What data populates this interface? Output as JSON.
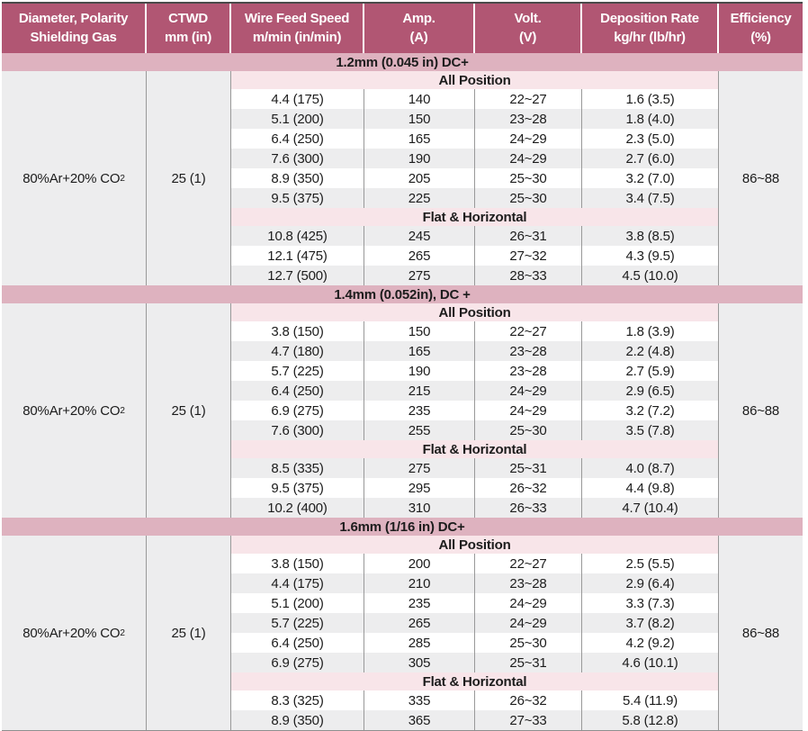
{
  "colors": {
    "header_bg": "#b15673",
    "header_text": "#ffffff",
    "section_band_bg": "#deb2bf",
    "subheader_bg": "#f8e5e9",
    "stripe_bg": "#ededee",
    "body_text": "#1c1c1c",
    "grid_line": "#999999"
  },
  "header": {
    "columns": [
      {
        "line1": "Diameter, Polarity",
        "line2": "Shielding Gas"
      },
      {
        "line1": "CTWD",
        "line2": "mm (in)"
      },
      {
        "line1": "Wire Feed Speed",
        "line2": "m/min (in/min)"
      },
      {
        "line1": "Amp.",
        "line2": "(A)"
      },
      {
        "line1": "Volt.",
        "line2": "(V)"
      },
      {
        "line1": "Deposition Rate",
        "line2": "kg/hr (lb/hr)"
      },
      {
        "line1": "Efficiency",
        "line2": "(%)"
      }
    ]
  },
  "sections": [
    {
      "title": "1.2mm (0.045 in) DC+",
      "shielding_gas": {
        "main": "80%Ar+20% CO",
        "sub": "2"
      },
      "ctwd": "25 (1)",
      "efficiency": "86~88",
      "blocks": [
        {
          "label": "All Position",
          "first_row_shaded": false,
          "rows": [
            [
              "4.4 (175)",
              "140",
              "22~27",
              "1.6 (3.5)"
            ],
            [
              "5.1 (200)",
              "150",
              "23~28",
              "1.8 (4.0)"
            ],
            [
              "6.4 (250)",
              "165",
              "24~29",
              "2.3 (5.0)"
            ],
            [
              "7.6 (300)",
              "190",
              "24~29",
              "2.7 (6.0)"
            ],
            [
              "8.9 (350)",
              "205",
              "25~30",
              "3.2 (7.0)"
            ],
            [
              "9.5 (375)",
              "225",
              "25~30",
              "3.4 (7.5)"
            ]
          ]
        },
        {
          "label": "Flat & Horizontal",
          "first_row_shaded": true,
          "rows": [
            [
              "10.8 (425)",
              "245",
              "26~31",
              "3.8 (8.5)"
            ],
            [
              "12.1 (475)",
              "265",
              "27~32",
              "4.3 (9.5)"
            ],
            [
              "12.7 (500)",
              "275",
              "28~33",
              "4.5 (10.0)"
            ]
          ]
        }
      ]
    },
    {
      "title": "1.4mm (0.052in), DC +",
      "shielding_gas": {
        "main": "80%Ar+20% CO",
        "sub": "2"
      },
      "ctwd": "25 (1)",
      "efficiency": "86~88",
      "blocks": [
        {
          "label": "All Position",
          "first_row_shaded": false,
          "rows": [
            [
              "3.8 (150)",
              "150",
              "22~27",
              "1.8 (3.9)"
            ],
            [
              "4.7 (180)",
              "165",
              "23~28",
              "2.2 (4.8)"
            ],
            [
              "5.7 (225)",
              "190",
              "23~28",
              "2.7 (5.9)"
            ],
            [
              "6.4 (250)",
              "215",
              "24~29",
              "2.9 (6.5)"
            ],
            [
              "6.9 (275)",
              "235",
              "24~29",
              "3.2 (7.2)"
            ],
            [
              "7.6 (300)",
              "255",
              "25~30",
              "3.5 (7.8)"
            ]
          ]
        },
        {
          "label": "Flat & Horizontal",
          "first_row_shaded": true,
          "rows": [
            [
              "8.5 (335)",
              "275",
              "25~31",
              "4.0 (8.7)"
            ],
            [
              "9.5 (375)",
              "295",
              "26~32",
              "4.4 (9.8)"
            ],
            [
              "10.2 (400)",
              "310",
              "26~33",
              "4.7 (10.4)"
            ]
          ]
        }
      ]
    },
    {
      "title": "1.6mm (1/16 in) DC+",
      "shielding_gas": {
        "main": "80%Ar+20% CO",
        "sub": "2"
      },
      "ctwd": "25 (1)",
      "efficiency": "86~88",
      "blocks": [
        {
          "label": "All Position",
          "first_row_shaded": false,
          "rows": [
            [
              "3.8 (150)",
              "200",
              "22~27",
              "2.5 (5.5)"
            ],
            [
              "4.4 (175)",
              "210",
              "23~28",
              "2.9 (6.4)"
            ],
            [
              "5.1 (200)",
              "235",
              "24~29",
              "3.3 (7.3)"
            ],
            [
              "5.7 (225)",
              "265",
              "24~29",
              "3.7 (8.2)"
            ],
            [
              "6.4 (250)",
              "285",
              "25~30",
              "4.2 (9.2)"
            ],
            [
              "6.9 (275)",
              "305",
              "25~31",
              "4.6 (10.1)"
            ]
          ]
        },
        {
          "label": "Flat & Horizontal",
          "first_row_shaded": false,
          "rows": [
            [
              "8.3 (325)",
              "335",
              "26~32",
              "5.4 (11.9)"
            ],
            [
              "8.9 (350)",
              "365",
              "27~33",
              "5.8 (12.8)"
            ]
          ]
        }
      ]
    }
  ]
}
